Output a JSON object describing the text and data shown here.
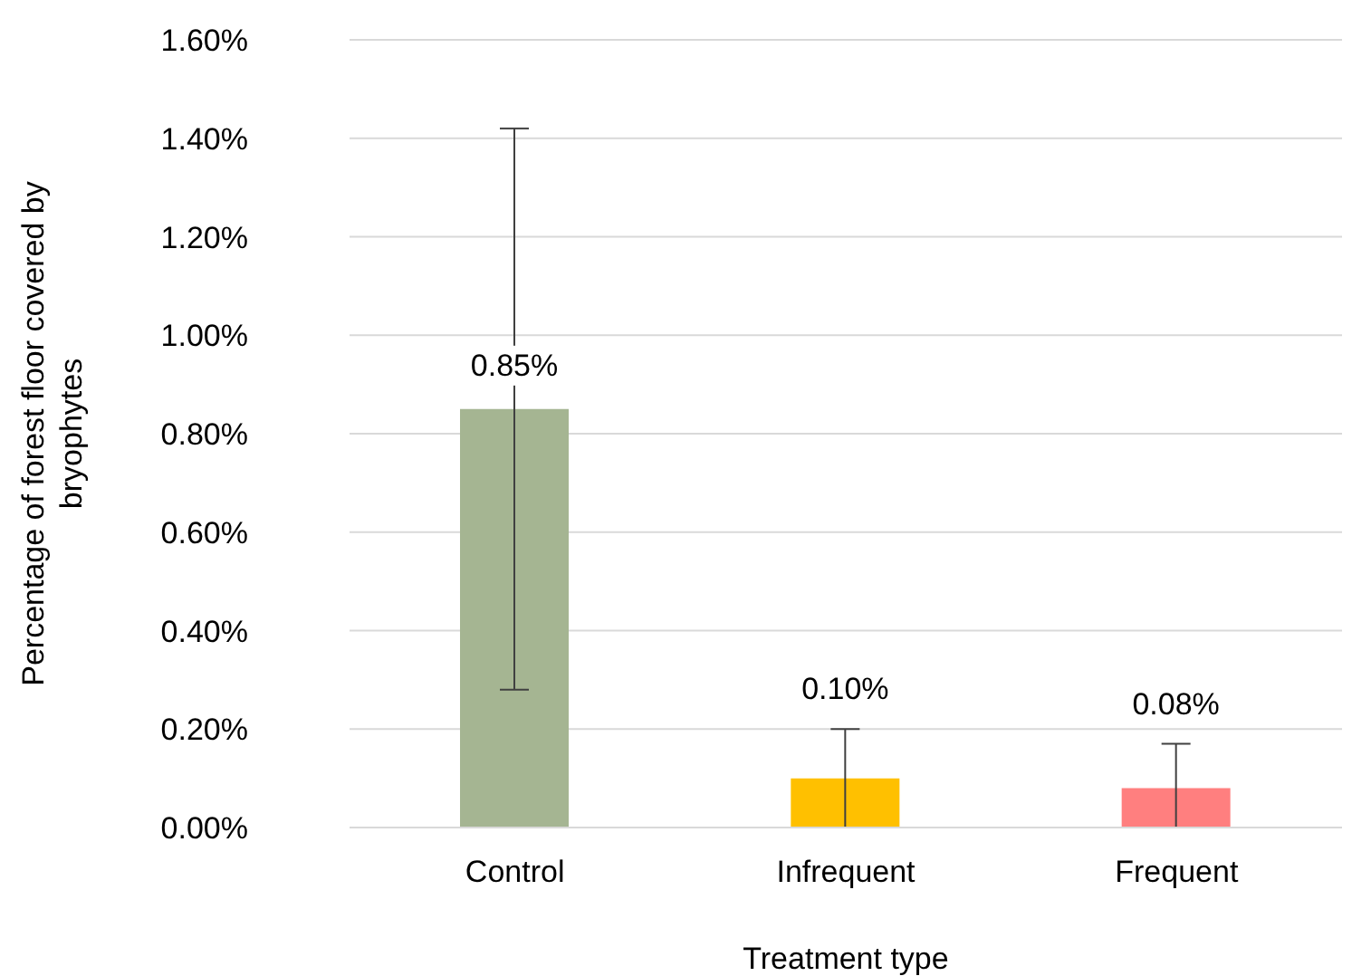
{
  "chart_data": {
    "type": "bar",
    "xlabel": "Treatment type",
    "ylabel": "Percentage of forest floor covered by bryophytes",
    "categories": [
      "Control",
      "Infrequent",
      "Frequent"
    ],
    "values": [
      0.85,
      0.1,
      0.08
    ],
    "colors": [
      "#a5b592",
      "#ffc000",
      "#ff7f7f"
    ],
    "errors": [
      [
        0.28,
        1.42
      ],
      [
        0,
        0.2
      ],
      [
        0,
        0.17
      ]
    ],
    "value_labels": [
      "0.85%",
      "0.10%",
      "0.08%"
    ],
    "ylim": [
      0,
      1.6
    ],
    "yticks": [
      {
        "value": 0,
        "label": "0.00%"
      },
      {
        "value": 0.2,
        "label": "0.20%"
      },
      {
        "value": 0.4,
        "label": "0.40%"
      },
      {
        "value": 0.6,
        "label": "0.60%"
      },
      {
        "value": 0.8,
        "label": "0.80%"
      },
      {
        "value": 1.0,
        "label": "1.00%"
      },
      {
        "value": 1.2,
        "label": "1.20%"
      },
      {
        "value": 1.4,
        "label": "1.40%"
      },
      {
        "value": 1.6,
        "label": "1.60%"
      }
    ],
    "grid": "y",
    "legend": false
  }
}
